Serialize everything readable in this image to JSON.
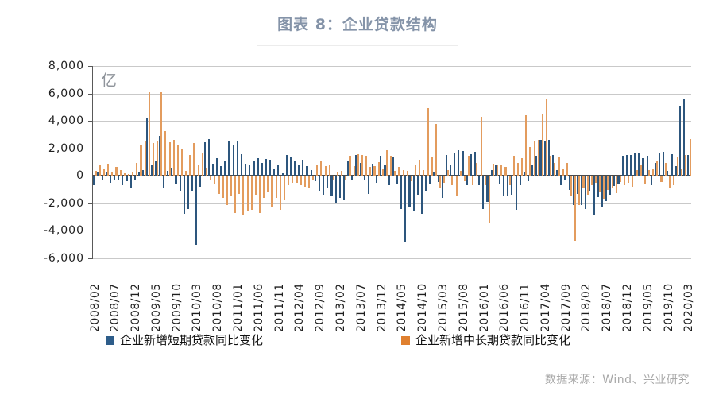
{
  "title": "图表 8：企业贷款结构",
  "unit_label": "亿",
  "source": "数据来源：Wind、兴业研究",
  "colors": {
    "title_text": "#8493a8",
    "bar_short_term": "#2d567d",
    "bar_medium_long": "#e39c5e",
    "legend_short_term": "#2e5d8a",
    "legend_medium_long": "#e0802f",
    "gridline": "#c9c9c9",
    "axis": "#595959",
    "zero_line": "#4a4a4a",
    "tick_text": "#1f1f1f",
    "source_text": "#a8a8a8"
  },
  "legend": {
    "items": [
      {
        "label": "企业新增短期贷款同比变化"
      },
      {
        "label": "企业新增中长期贷款同比变化"
      }
    ]
  },
  "y_axis": {
    "tick_labels": [
      "8,000",
      "6,000",
      "4,000",
      "2,000",
      "0",
      "-2,000",
      "-4,000",
      "-6,000"
    ]
  },
  "chart_data": {
    "type": "bar",
    "title": "图表 8：企业贷款结构",
    "ylabel": "亿",
    "ylim": [
      -6000,
      8000
    ],
    "y_step": 2000,
    "grid": "horizontal",
    "legend_position": "bottom",
    "x_start": "2008/02",
    "x_end": "2020/03",
    "x_frequency": "monthly",
    "x_tick_labels": [
      "2008/02",
      "2008/07",
      "2008/12",
      "2009/05",
      "2009/10",
      "2010/03",
      "2010/08",
      "2011/01",
      "2011/06",
      "2011/11",
      "2012/04",
      "2012/09",
      "2013/02",
      "2013/07",
      "2013/12",
      "2014/05",
      "2014/10",
      "2015/03",
      "2015/08",
      "2016/01",
      "2016/06",
      "2016/11",
      "2017/04",
      "2017/09",
      "2018/02",
      "2018/07",
      "2018/12",
      "2019/05",
      "2019/10",
      "2020/03"
    ],
    "series": [
      {
        "name": "企业新增短期贷款同比变化",
        "color": "#2d567d",
        "values": [
          -650,
          250,
          -350,
          300,
          -500,
          -300,
          -250,
          -700,
          -400,
          -850,
          -300,
          300,
          450,
          4250,
          800,
          1050,
          2900,
          -900,
          350,
          600,
          -550,
          -1100,
          -2750,
          -2400,
          -1100,
          -5000,
          -800,
          2450,
          2700,
          900,
          1300,
          700,
          1100,
          2500,
          2300,
          2550,
          1600,
          900,
          750,
          1050,
          1300,
          950,
          1250,
          1200,
          550,
          750,
          200,
          1500,
          1400,
          1050,
          850,
          1200,
          700,
          450,
          -400,
          -1100,
          -1350,
          -900,
          -1500,
          -2000,
          -1600,
          -1750,
          1050,
          -300,
          1500,
          950,
          -350,
          -1300,
          900,
          -500,
          1450,
          800,
          -700,
          1350,
          -550,
          -2400,
          -4850,
          -2300,
          -2600,
          -1400,
          -2750,
          -1100,
          -550,
          300,
          -450,
          -1600,
          1500,
          850,
          1700,
          1850,
          1800,
          -700,
          1600,
          1750,
          -700,
          -2400,
          -1900,
          450,
          800,
          -600,
          -1500,
          -1500,
          -1400,
          -2450,
          -700,
          250,
          -400,
          750,
          1450,
          2600,
          2550,
          2600,
          1500,
          450,
          -650,
          -350,
          -1050,
          -2100,
          -1300,
          -2150,
          -2400,
          -1100,
          -2900,
          -1550,
          -2300,
          -1850,
          -1400,
          -750,
          -600,
          1450,
          1500,
          1500,
          1650,
          1700,
          1300,
          1450,
          -700,
          950,
          1650,
          1750,
          350,
          1600,
          700,
          5100,
          5650,
          1500
        ]
      },
      {
        "name": "企业新增中长期贷款同比变化",
        "color": "#e39c5e",
        "values": [
          350,
          800,
          500,
          900,
          300,
          650,
          400,
          200,
          150,
          300,
          950,
          2200,
          2500,
          6100,
          2400,
          2500,
          6100,
          3250,
          2450,
          2600,
          2300,
          1900,
          350,
          1500,
          2400,
          800,
          1700,
          600,
          -300,
          -600,
          -1300,
          -1600,
          -2100,
          -1500,
          -2700,
          -1300,
          -2800,
          -2600,
          -2500,
          -1400,
          -2700,
          -1600,
          -1200,
          -2300,
          -1600,
          -2500,
          -1700,
          -700,
          -500,
          -500,
          -650,
          -800,
          -900,
          -350,
          850,
          1050,
          700,
          800,
          -300,
          300,
          350,
          -300,
          1450,
          700,
          1550,
          1500,
          1450,
          650,
          700,
          1000,
          500,
          1850,
          1450,
          350,
          650,
          450,
          350,
          -400,
          850,
          1200,
          400,
          4950,
          1350,
          3800,
          -900,
          -500,
          450,
          -700,
          -1500,
          350,
          -400,
          1450,
          -650,
          950,
          4300,
          -650,
          -3400,
          900,
          750,
          850,
          650,
          -700,
          1450,
          950,
          1300,
          4400,
          2100,
          2550,
          2600,
          4500,
          5600,
          1450,
          950,
          1350,
          550,
          950,
          -1500,
          -4700,
          -2150,
          -900,
          -1400,
          -700,
          -500,
          -1200,
          -1650,
          -1000,
          -900,
          -1250,
          -450,
          -700,
          -500,
          -800,
          450,
          750,
          -600,
          400,
          550,
          1050,
          -450,
          950,
          -850,
          -700,
          1400,
          500,
          1500,
          2700
        ]
      }
    ]
  }
}
